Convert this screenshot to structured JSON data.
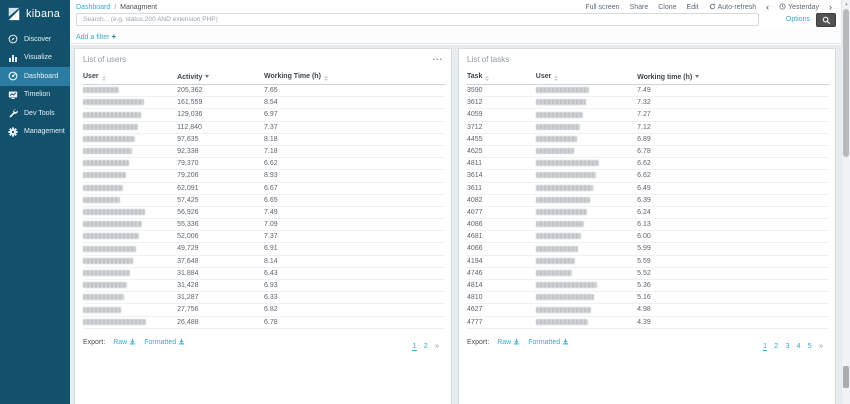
{
  "app": {
    "name": "kibana"
  },
  "icons": {
    "add": "+",
    "prev_time": "‹",
    "next_time": "›",
    "scroll_up": "▲",
    "ellipsis": "..."
  },
  "colors": {
    "accent_link": "#3ca8c7",
    "sidebar_bg": "#12506b",
    "sidebar_active": "#2b7ca3",
    "content_bg": "#e9edf0",
    "search_button_bg": "#525252"
  },
  "sidebar": {
    "items": [
      {
        "label": "Discover",
        "icon": "discover-icon",
        "active": false
      },
      {
        "label": "Visualize",
        "icon": "visualize-icon",
        "active": false
      },
      {
        "label": "Dashboard",
        "icon": "dashboard-icon",
        "active": true
      },
      {
        "label": "Timelion",
        "icon": "timelion-icon",
        "active": false
      },
      {
        "label": "Dev Tools",
        "icon": "dev-tools-icon",
        "active": false
      },
      {
        "label": "Management",
        "icon": "management-icon",
        "active": false
      }
    ]
  },
  "topbar": {
    "breadcrumb": {
      "link": "Dashboard",
      "separator": "/",
      "current": "Managment"
    },
    "actions": [
      "Full screen",
      "Share",
      "Clone",
      "Edit"
    ],
    "auto_refresh_label": "Auto-refresh",
    "time_range": "Yesterday",
    "search": {
      "placeholder": "Search... (e.g. status:200 AND extension:PHP)",
      "value": "",
      "options_label": "Options"
    }
  },
  "filter_bar": {
    "add_filter_label": "Add a filter"
  },
  "panels": [
    {
      "title": "List of users",
      "has_menu_icon": true,
      "columns": [
        {
          "label": "User",
          "sort": "none"
        },
        {
          "label": "Activity",
          "sort": "desc"
        },
        {
          "label": "Working Time (h)",
          "sort": "none"
        }
      ],
      "redacted_column": 0,
      "rows": [
        [
          null,
          "205,362",
          "7.65"
        ],
        [
          null,
          "161,559",
          "8.54"
        ],
        [
          null,
          "129,036",
          "6.97"
        ],
        [
          null,
          "112,840",
          "7.37"
        ],
        [
          null,
          "97,635",
          "8.18"
        ],
        [
          null,
          "92,338",
          "7.18"
        ],
        [
          null,
          "79,370",
          "6.62"
        ],
        [
          null,
          "79,206",
          "8.93"
        ],
        [
          null,
          "62,091",
          "6.67"
        ],
        [
          null,
          "57,425",
          "6.65"
        ],
        [
          null,
          "56,926",
          "7.49"
        ],
        [
          null,
          "55,336",
          "7.09"
        ],
        [
          null,
          "52,006",
          "7.37"
        ],
        [
          null,
          "49,729",
          "6.91"
        ],
        [
          null,
          "37,648",
          "8.14"
        ],
        [
          null,
          "31,884",
          "6.43"
        ],
        [
          null,
          "31,428",
          "6.93"
        ],
        [
          null,
          "31,287",
          "6.33"
        ],
        [
          null,
          "27,756",
          "6.82"
        ],
        [
          null,
          "26,488",
          "6.78"
        ]
      ],
      "export_label": "Export:",
      "export_links": [
        "Raw",
        "Formatted"
      ],
      "pagination": {
        "pages": [
          "1",
          "2"
        ],
        "current": "1",
        "next": "»"
      }
    },
    {
      "title": "List of tasks",
      "has_menu_icon": false,
      "columns": [
        {
          "label": "Task",
          "sort": "none"
        },
        {
          "label": "User",
          "sort": "none"
        },
        {
          "label": "Working time (h)",
          "sort": "desc"
        }
      ],
      "redacted_column": 1,
      "rows": [
        [
          "3590",
          null,
          "7.49"
        ],
        [
          "3612",
          null,
          "7.32"
        ],
        [
          "4059",
          null,
          "7.27"
        ],
        [
          "3712",
          null,
          "7.12"
        ],
        [
          "4455",
          null,
          "6.89"
        ],
        [
          "4625",
          null,
          "6.78"
        ],
        [
          "4811",
          null,
          "6.62"
        ],
        [
          "3614",
          null,
          "6.62"
        ],
        [
          "3611",
          null,
          "6.49"
        ],
        [
          "4082",
          null,
          "6.39"
        ],
        [
          "4077",
          null,
          "6.24"
        ],
        [
          "4086",
          null,
          "6.13"
        ],
        [
          "4681",
          null,
          "6.00"
        ],
        [
          "4066",
          null,
          "5.99"
        ],
        [
          "4194",
          null,
          "5.59"
        ],
        [
          "4746",
          null,
          "5.52"
        ],
        [
          "4814",
          null,
          "5.36"
        ],
        [
          "4810",
          null,
          "5.16"
        ],
        [
          "4627",
          null,
          "4.98"
        ],
        [
          "4777",
          null,
          "4.39"
        ]
      ],
      "export_label": "Export:",
      "export_links": [
        "Raw",
        "Formatted"
      ],
      "pagination": {
        "pages": [
          "1",
          "2",
          "3",
          "4",
          "5"
        ],
        "current": "1",
        "next": "»"
      }
    }
  ]
}
